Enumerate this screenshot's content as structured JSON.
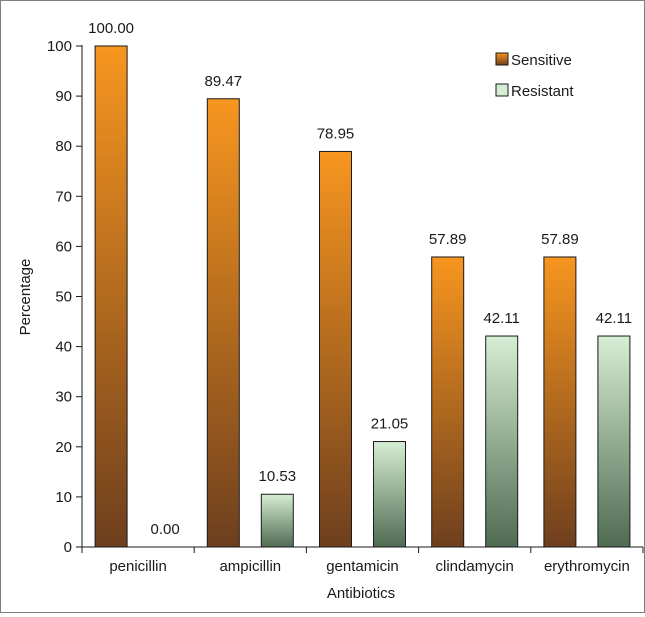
{
  "chart_data": {
    "type": "bar",
    "title": "",
    "xlabel": "Antibiotics",
    "ylabel": "Percentage",
    "ylim": [
      0,
      100
    ],
    "yticks": [
      0,
      10,
      20,
      30,
      40,
      50,
      60,
      70,
      80,
      90,
      100
    ],
    "grid": false,
    "legend_position": "top-right",
    "categories": [
      "penicillin",
      "ampicillin",
      "gentamicin",
      "clindamycin",
      "erythromycin"
    ],
    "series": [
      {
        "name": "Sensitive",
        "values": [
          100.0,
          89.47,
          78.95,
          57.89,
          57.89
        ],
        "labels": [
          "100.00",
          "89.47",
          "78.95",
          "57.89",
          "57.89"
        ],
        "color_top": "#f7961f",
        "color_bottom": "#6e3f1e"
      },
      {
        "name": "Resistant",
        "values": [
          0.0,
          10.53,
          21.05,
          42.11,
          42.11
        ],
        "labels": [
          "0.00",
          "10.53",
          "21.05",
          "42.11",
          "42.11"
        ],
        "color_top": "#d6eed3",
        "color_bottom": "#4f6b52"
      }
    ]
  }
}
